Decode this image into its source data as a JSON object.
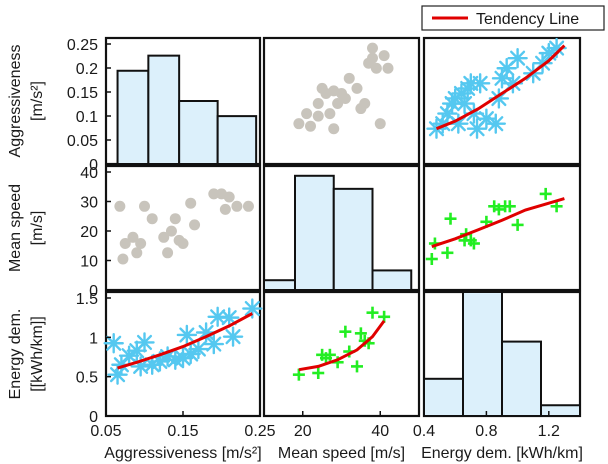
{
  "chart_data": {
    "type": "scatter",
    "title": "",
    "legend": {
      "label": "Tendency Line",
      "placement": "top-right",
      "color": "#e00000"
    },
    "colors": {
      "gray": "#c8c4bc",
      "blue": "#55c8f0",
      "green": "#22ee22",
      "line": "#e00000",
      "hist_fill": "#dcf0fb",
      "hist_edge": "#111111"
    },
    "variables": [
      {
        "key": "aggr",
        "ylabel": [
          "Aggressiveness",
          "[m/s²]"
        ],
        "xlabel": "Aggressiveness [m/s²]",
        "lim": [
          0.05,
          0.25
        ],
        "yticks": [
          "0",
          "0.05",
          "0.1",
          "0.15",
          "0.2",
          "0.25"
        ],
        "xticks": [
          "0.05",
          "0.15",
          "0.25"
        ]
      },
      {
        "key": "speed",
        "ylabel": [
          "Mean speed",
          "[m/s]"
        ],
        "xlabel": "Mean speed [m/s]",
        "lim": [
          10,
          50
        ],
        "yticks": [
          "0",
          "10",
          "20",
          "30",
          "40"
        ],
        "xticks": [
          "20",
          "40"
        ]
      },
      {
        "key": "energy",
        "ylabel": [
          "Energy dem.",
          "[[kWh/km]]"
        ],
        "xlabel": "Energy dem. [kWh/km]",
        "lim": [
          0.4,
          1.4
        ],
        "yticks": [
          "0",
          "0.5",
          "1",
          "1.5"
        ],
        "xticks": [
          "0.4",
          "0.8",
          "1.2"
        ]
      }
    ],
    "histograms": [
      {
        "bins": [
          [
            0.065,
            0.105
          ],
          [
            0.105,
            0.145
          ],
          [
            0.145,
            0.195
          ],
          [
            0.195,
            0.245
          ]
        ],
        "counts": [
          0.185,
          0.215,
          0.125,
          0.095
        ],
        "ylim": [
          0,
          0.25
        ]
      },
      {
        "bins": [
          [
            10,
            18
          ],
          [
            18,
            28
          ],
          [
            28,
            38
          ],
          [
            38,
            48
          ]
        ],
        "counts": [
          3,
          35,
          31,
          6
        ],
        "ylim": [
          0,
          38
        ]
      },
      {
        "bins": [
          [
            0.4,
            0.65
          ],
          [
            0.65,
            0.9
          ],
          [
            0.9,
            1.15
          ],
          [
            1.15,
            1.4
          ]
        ],
        "counts": [
          0.45,
          1.5,
          0.9,
          0.13
        ],
        "ylim": [
          0,
          1.5
        ]
      }
    ],
    "scatter_panels": [
      {
        "row": 0,
        "col": 1,
        "marker": "dot",
        "color_key": "gray",
        "ylim": [
          0,
          0.25
        ],
        "xlim": [
          10,
          50
        ],
        "trend": false,
        "points": [
          [
            19,
            0.08
          ],
          [
            21,
            0.1
          ],
          [
            22,
            0.075
          ],
          [
            24,
            0.095
          ],
          [
            24,
            0.12
          ],
          [
            25,
            0.15
          ],
          [
            26,
            0.14
          ],
          [
            27,
            0.1
          ],
          [
            28,
            0.07
          ],
          [
            28,
            0.145
          ],
          [
            29,
            0.12
          ],
          [
            30,
            0.14
          ],
          [
            31,
            0.13
          ],
          [
            32,
            0.17
          ],
          [
            34,
            0.15
          ],
          [
            35,
            0.11
          ],
          [
            36,
            0.12
          ],
          [
            37,
            0.2
          ],
          [
            38,
            0.21
          ],
          [
            38,
            0.23
          ],
          [
            39,
            0.19
          ],
          [
            40,
            0.08
          ],
          [
            41,
            0.215
          ],
          [
            42,
            0.19
          ]
        ]
      },
      {
        "row": 0,
        "col": 2,
        "marker": "star",
        "color_key": "blue",
        "ylim": [
          0,
          0.25
        ],
        "xlim": [
          0.4,
          1.4
        ],
        "trend": true,
        "points": [
          [
            0.48,
            0.07
          ],
          [
            0.52,
            0.08
          ],
          [
            0.55,
            0.1
          ],
          [
            0.58,
            0.12
          ],
          [
            0.6,
            0.13
          ],
          [
            0.62,
            0.08
          ],
          [
            0.64,
            0.14
          ],
          [
            0.66,
            0.12
          ],
          [
            0.68,
            0.15
          ],
          [
            0.7,
            0.16
          ],
          [
            0.72,
            0.1
          ],
          [
            0.74,
            0.07
          ],
          [
            0.76,
            0.16
          ],
          [
            0.8,
            0.09
          ],
          [
            0.86,
            0.08
          ],
          [
            0.88,
            0.13
          ],
          [
            0.9,
            0.17
          ],
          [
            0.93,
            0.19
          ],
          [
            0.97,
            0.16
          ],
          [
            1.0,
            0.21
          ],
          [
            1.1,
            0.18
          ],
          [
            1.16,
            0.2
          ],
          [
            1.2,
            0.22
          ],
          [
            1.25,
            0.23
          ]
        ],
        "trend_line": [
          [
            0.48,
            0.07
          ],
          [
            0.6,
            0.085
          ],
          [
            0.75,
            0.11
          ],
          [
            0.9,
            0.14
          ],
          [
            1.05,
            0.17
          ],
          [
            1.2,
            0.205
          ],
          [
            1.3,
            0.235
          ]
        ]
      },
      {
        "row": 1,
        "col": 0,
        "marker": "dot",
        "color_key": "gray",
        "ylim": [
          0,
          40
        ],
        "xlim": [
          0.05,
          0.25
        ],
        "trend": false,
        "points": [
          [
            0.072,
            10
          ],
          [
            0.068,
            27
          ],
          [
            0.075,
            15
          ],
          [
            0.085,
            17
          ],
          [
            0.09,
            12
          ],
          [
            0.095,
            15
          ],
          [
            0.1,
            27
          ],
          [
            0.11,
            23
          ],
          [
            0.125,
            17
          ],
          [
            0.13,
            12
          ],
          [
            0.135,
            19
          ],
          [
            0.14,
            23
          ],
          [
            0.145,
            16
          ],
          [
            0.15,
            15
          ],
          [
            0.16,
            28
          ],
          [
            0.165,
            21
          ],
          [
            0.19,
            31
          ],
          [
            0.2,
            31
          ],
          [
            0.205,
            26
          ],
          [
            0.21,
            30
          ],
          [
            0.22,
            27
          ],
          [
            0.235,
            27
          ]
        ]
      },
      {
        "row": 1,
        "col": 2,
        "marker": "plus",
        "color_key": "green",
        "ylim": [
          0,
          40
        ],
        "xlim": [
          0.4,
          1.4
        ],
        "trend": true,
        "points": [
          [
            0.45,
            10
          ],
          [
            0.47,
            15
          ],
          [
            0.55,
            12
          ],
          [
            0.57,
            23
          ],
          [
            0.66,
            16
          ],
          [
            0.67,
            18
          ],
          [
            0.7,
            16
          ],
          [
            0.72,
            15
          ],
          [
            0.8,
            22
          ],
          [
            0.85,
            27
          ],
          [
            0.88,
            26
          ],
          [
            0.92,
            27
          ],
          [
            0.95,
            27
          ],
          [
            1.0,
            21
          ],
          [
            1.18,
            31
          ],
          [
            1.25,
            27
          ]
        ],
        "trend_line": [
          [
            0.45,
            14
          ],
          [
            0.6,
            16.5
          ],
          [
            0.75,
            19.5
          ],
          [
            0.9,
            22.5
          ],
          [
            1.05,
            25.8
          ],
          [
            1.2,
            28
          ],
          [
            1.3,
            29.5
          ]
        ]
      },
      {
        "row": 2,
        "col": 0,
        "marker": "star",
        "color_key": "blue",
        "ylim": [
          0,
          1.5
        ],
        "xlim": [
          0.05,
          0.25
        ],
        "trend": true,
        "points": [
          [
            0.06,
            0.88
          ],
          [
            0.065,
            0.5
          ],
          [
            0.07,
            0.62
          ],
          [
            0.08,
            0.73
          ],
          [
            0.09,
            0.79
          ],
          [
            0.095,
            0.6
          ],
          [
            0.1,
            0.89
          ],
          [
            0.11,
            0.62
          ],
          [
            0.12,
            0.66
          ],
          [
            0.13,
            0.72
          ],
          [
            0.14,
            0.68
          ],
          [
            0.15,
            0.7
          ],
          [
            0.155,
            0.98
          ],
          [
            0.16,
            0.75
          ],
          [
            0.17,
            0.81
          ],
          [
            0.18,
            1.01
          ],
          [
            0.19,
            0.87
          ],
          [
            0.195,
            1.2
          ],
          [
            0.21,
            1.19
          ],
          [
            0.215,
            0.96
          ],
          [
            0.24,
            1.3
          ]
        ],
        "trend_line": [
          [
            0.065,
            0.58
          ],
          [
            0.09,
            0.65
          ],
          [
            0.12,
            0.74
          ],
          [
            0.15,
            0.84
          ],
          [
            0.18,
            0.96
          ],
          [
            0.21,
            1.09
          ],
          [
            0.24,
            1.24
          ]
        ]
      },
      {
        "row": 2,
        "col": 1,
        "marker": "plus",
        "color_key": "green",
        "ylim": [
          0,
          1.5
        ],
        "xlim": [
          10,
          50
        ],
        "trend": true,
        "points": [
          [
            19,
            0.5
          ],
          [
            24,
            0.52
          ],
          [
            25,
            0.74
          ],
          [
            26,
            0.7
          ],
          [
            27,
            0.74
          ],
          [
            29,
            0.65
          ],
          [
            31,
            1.02
          ],
          [
            32,
            0.78
          ],
          [
            34,
            0.6
          ],
          [
            35,
            1.0
          ],
          [
            36,
            0.91
          ],
          [
            37,
            0.88
          ],
          [
            38,
            1.25
          ],
          [
            41,
            1.2
          ]
        ],
        "trend_line": [
          [
            19,
            0.56
          ],
          [
            24,
            0.6
          ],
          [
            29,
            0.68
          ],
          [
            34,
            0.8
          ],
          [
            38,
            0.96
          ],
          [
            41,
            1.15
          ]
        ]
      }
    ]
  }
}
